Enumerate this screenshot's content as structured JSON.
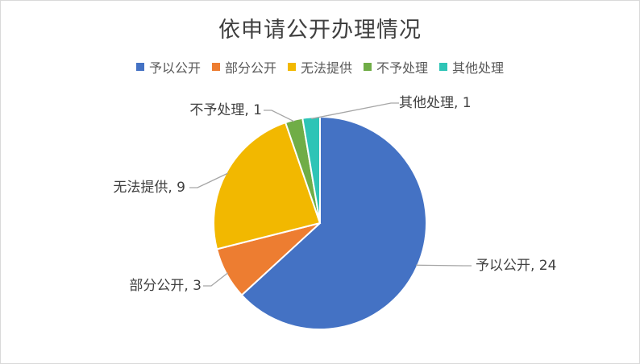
{
  "chart_data": {
    "type": "pie",
    "title": "依申请公开办理情况",
    "legend_position": "top",
    "categories": [
      "予以公开",
      "部分公开",
      "无法提供",
      "不予处理",
      "其他处理"
    ],
    "values": [
      24,
      3,
      9,
      1,
      1
    ],
    "colors": [
      "#4472C4",
      "#ED7D31",
      "#F2B800",
      "#70AD47",
      "#2EC4B6"
    ],
    "data_labels": [
      "予以公开, 24",
      "部分公开, 3",
      "无法提供, 9",
      "不予处理, 1",
      "其他处理, 1"
    ]
  }
}
